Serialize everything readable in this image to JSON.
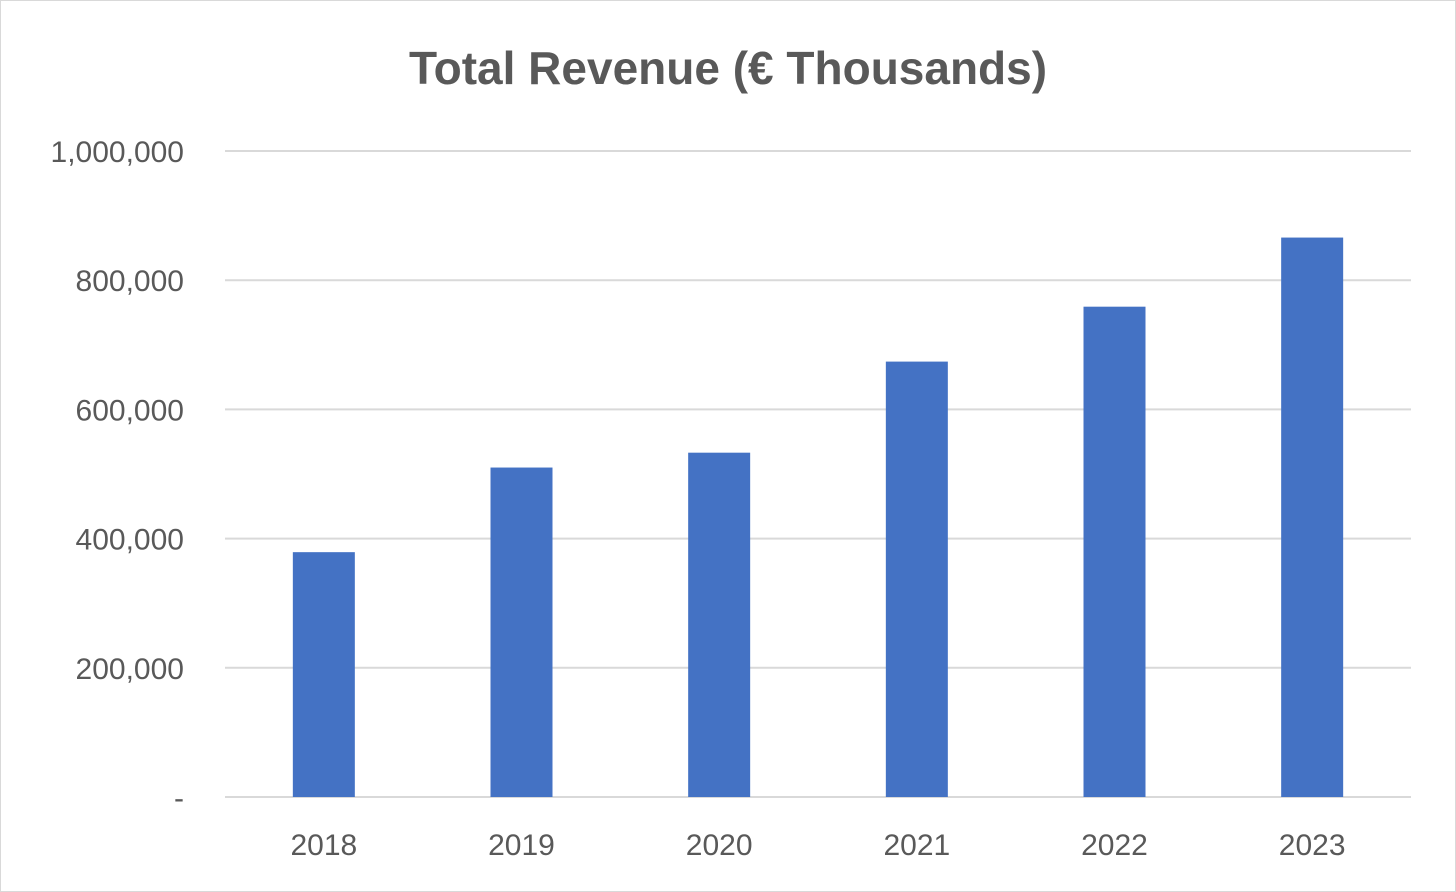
{
  "chart_data": {
    "type": "bar",
    "title": "Total Revenue (€ Thousands)",
    "xlabel": "",
    "ylabel": "",
    "categories": [
      "2018",
      "2019",
      "2020",
      "2021",
      "2022",
      "2023"
    ],
    "values": [
      379000,
      510000,
      533000,
      674000,
      759000,
      866000
    ],
    "ylim": [
      0,
      1000000
    ],
    "yticks": [
      0,
      200000,
      400000,
      600000,
      800000,
      1000000
    ],
    "ytick_labels": [
      "-",
      "200,000",
      "400,000",
      "600,000",
      "800,000",
      "1,000,000"
    ],
    "grid": true,
    "legend": "none",
    "colors": {
      "bar": "#4472C4",
      "grid": "#d9d9d9",
      "text": "#595959"
    }
  }
}
